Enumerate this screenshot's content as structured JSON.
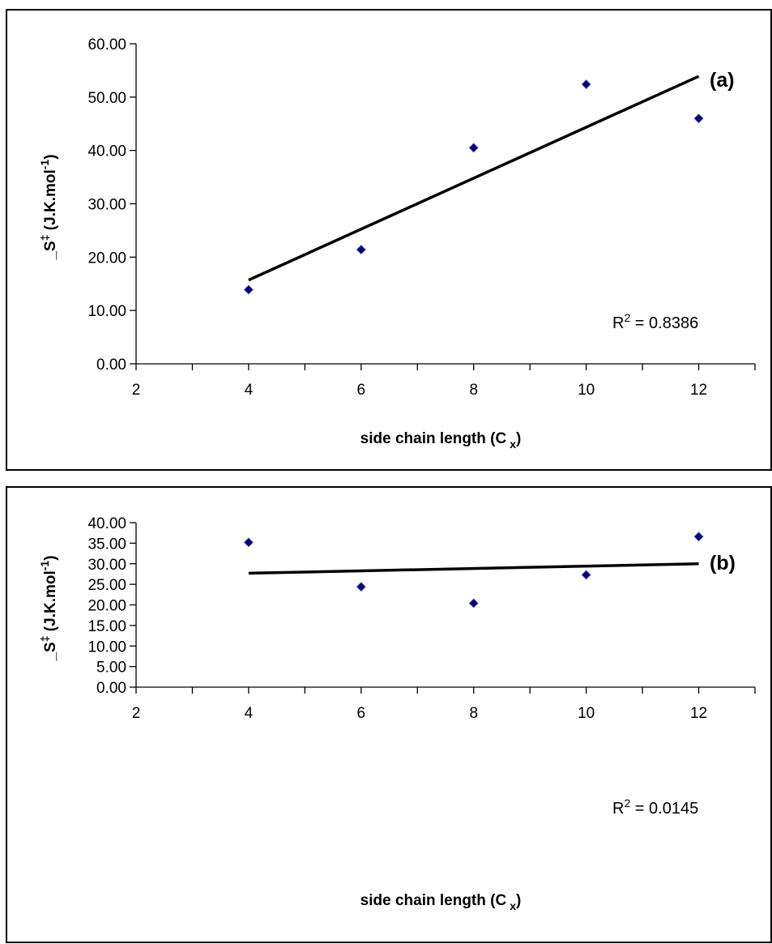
{
  "chart_data": [
    {
      "type": "scatter",
      "panel_label": "(a)",
      "xlabel": "side chain length (C",
      "xlabel_sub": "x",
      "xlabel_close": ")",
      "ylabel": "_S",
      "ylabel_sup": "‡",
      "ylabel_units": " (J.K.mol",
      "ylabel_units_sup": "-1",
      "ylabel_units_close": ")",
      "xlim": [
        2,
        13
      ],
      "ylim": [
        0,
        60
      ],
      "xticks": [
        "2",
        "4",
        "6",
        "8",
        "10",
        "12"
      ],
      "yticks": [
        "0.00",
        "10.00",
        "20.00",
        "30.00",
        "40.00",
        "50.00",
        "60.00"
      ],
      "grid": false,
      "series": [
        {
          "x": [
            4,
            6,
            8,
            10,
            12
          ],
          "y": [
            13.9,
            21.4,
            40.5,
            52.4,
            46.0
          ],
          "marker": "diamond",
          "color": "#000080"
        }
      ],
      "trendline": {
        "x": [
          4,
          12
        ],
        "y": [
          15.7,
          53.9
        ],
        "color": "#000000"
      },
      "r2_text": "R",
      "r2_sup": "2",
      "r2_value": " = 0.8386"
    },
    {
      "type": "scatter",
      "panel_label": "(b)",
      "xlabel": "side chain length (C",
      "xlabel_sub": "x",
      "xlabel_close": ")",
      "ylabel": "_S",
      "ylabel_sup": "‡",
      "ylabel_units": " (J.K.mol",
      "ylabel_units_sup": "-1",
      "ylabel_units_close": ")",
      "xlim": [
        2,
        13
      ],
      "ylim": [
        0,
        40
      ],
      "xticks": [
        "2",
        "4",
        "6",
        "8",
        "10",
        "12"
      ],
      "yticks": [
        "0.00",
        "5.00",
        "10.00",
        "15.00",
        "20.00",
        "25.00",
        "30.00",
        "35.00",
        "40.00"
      ],
      "grid": false,
      "series": [
        {
          "x": [
            4,
            6,
            8,
            10,
            12
          ],
          "y": [
            35.2,
            24.4,
            20.4,
            27.3,
            36.6
          ],
          "marker": "diamond",
          "color": "#000080"
        }
      ],
      "trendline": {
        "x": [
          4,
          12
        ],
        "y": [
          27.7,
          30.0
        ],
        "color": "#000000"
      },
      "r2_text": "R",
      "r2_sup": "2",
      "r2_value": " = 0.0145"
    }
  ]
}
